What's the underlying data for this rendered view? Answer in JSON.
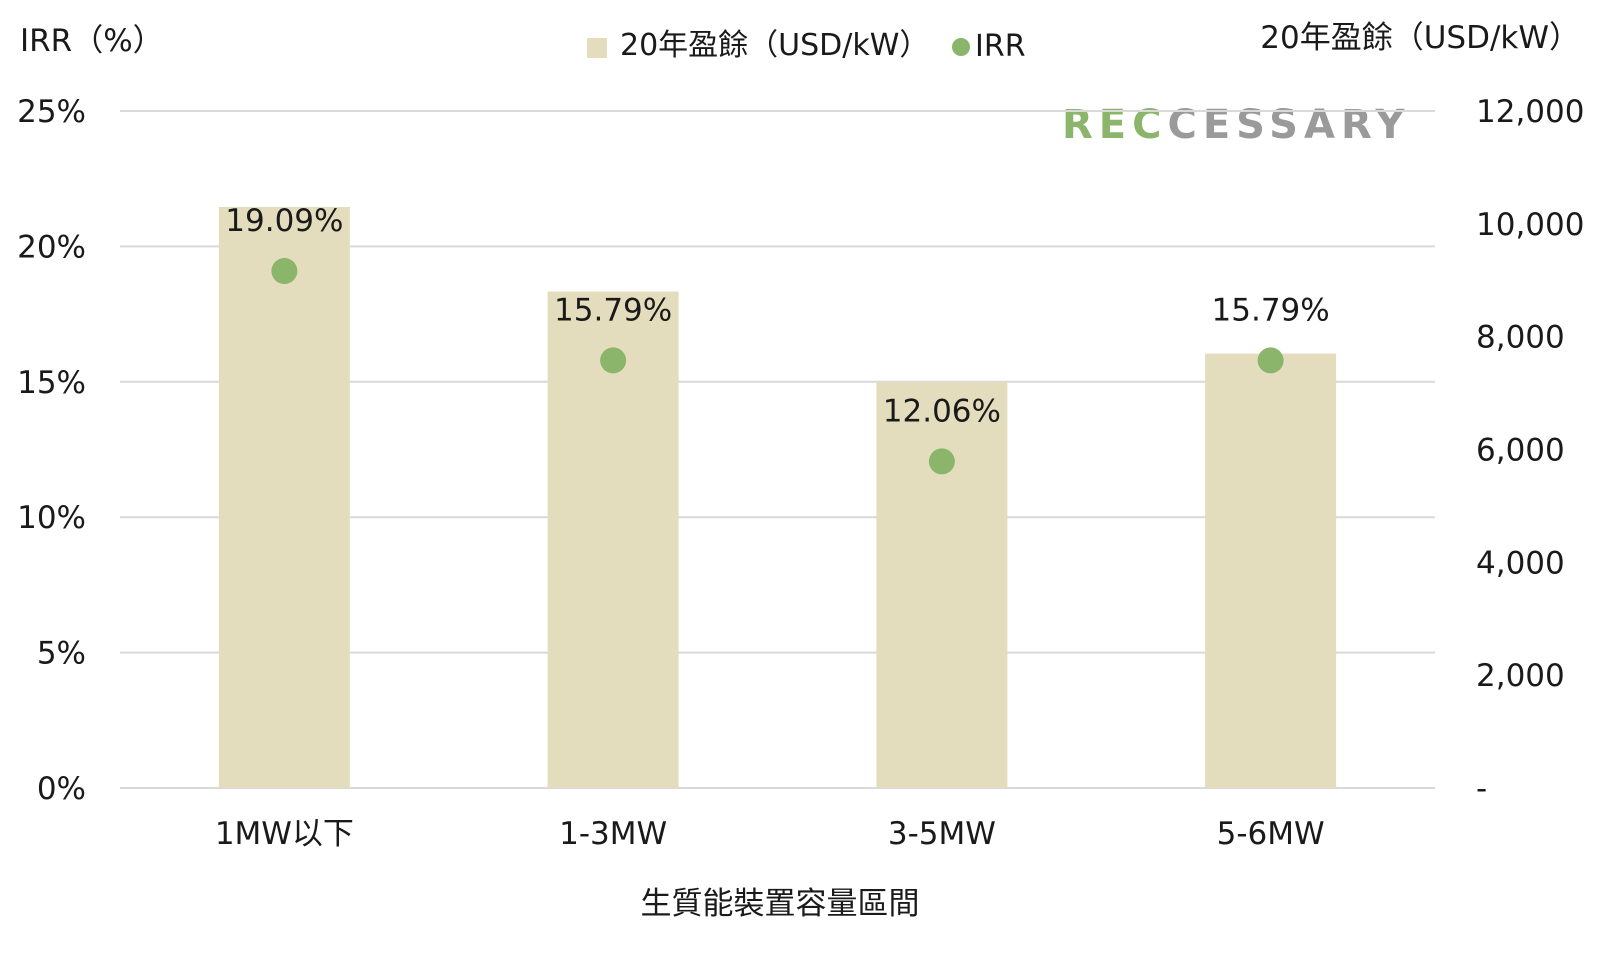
{
  "chart_data": {
    "type": "bar",
    "categories": [
      "1MW以下",
      "1-3MW",
      "3-5MW",
      "5-6MW"
    ],
    "series": [
      {
        "name": "20年盈餘（USD/kW）",
        "type": "bar",
        "axis": "right",
        "values": [
          10300,
          8800,
          7200,
          7700
        ]
      },
      {
        "name": "IRR",
        "type": "scatter",
        "axis": "left",
        "values": [
          19.09,
          15.79,
          12.06,
          15.79
        ],
        "labels": [
          "19.09%",
          "15.79%",
          "12.06%",
          "15.79%"
        ]
      }
    ],
    "xlabel": "生質能裝置容量區間",
    "ylabel_left": "IRR（%）",
    "ylabel_right": "20年盈餘（USD/kW）",
    "ylim_left": [
      0,
      25
    ],
    "ylim_right": [
      0,
      12000
    ],
    "yticks_left": [
      "0%",
      "5%",
      "10%",
      "15%",
      "20%",
      "25%"
    ],
    "yticks_right": [
      "-",
      "2,000",
      "4,000",
      "6,000",
      "8,000",
      "10,000",
      "12,000"
    ],
    "legend": [
      {
        "label": "20年盈餘（USD/kW）",
        "marker": "square"
      },
      {
        "label": "IRR",
        "marker": "circle"
      }
    ],
    "legend_position": "top-center",
    "grid": true,
    "colors": {
      "bar": "#e3ddbd",
      "dot": "#8ab56b",
      "grid": "#d9d9d9"
    }
  },
  "watermark": {
    "text": "RECCESSARY"
  }
}
